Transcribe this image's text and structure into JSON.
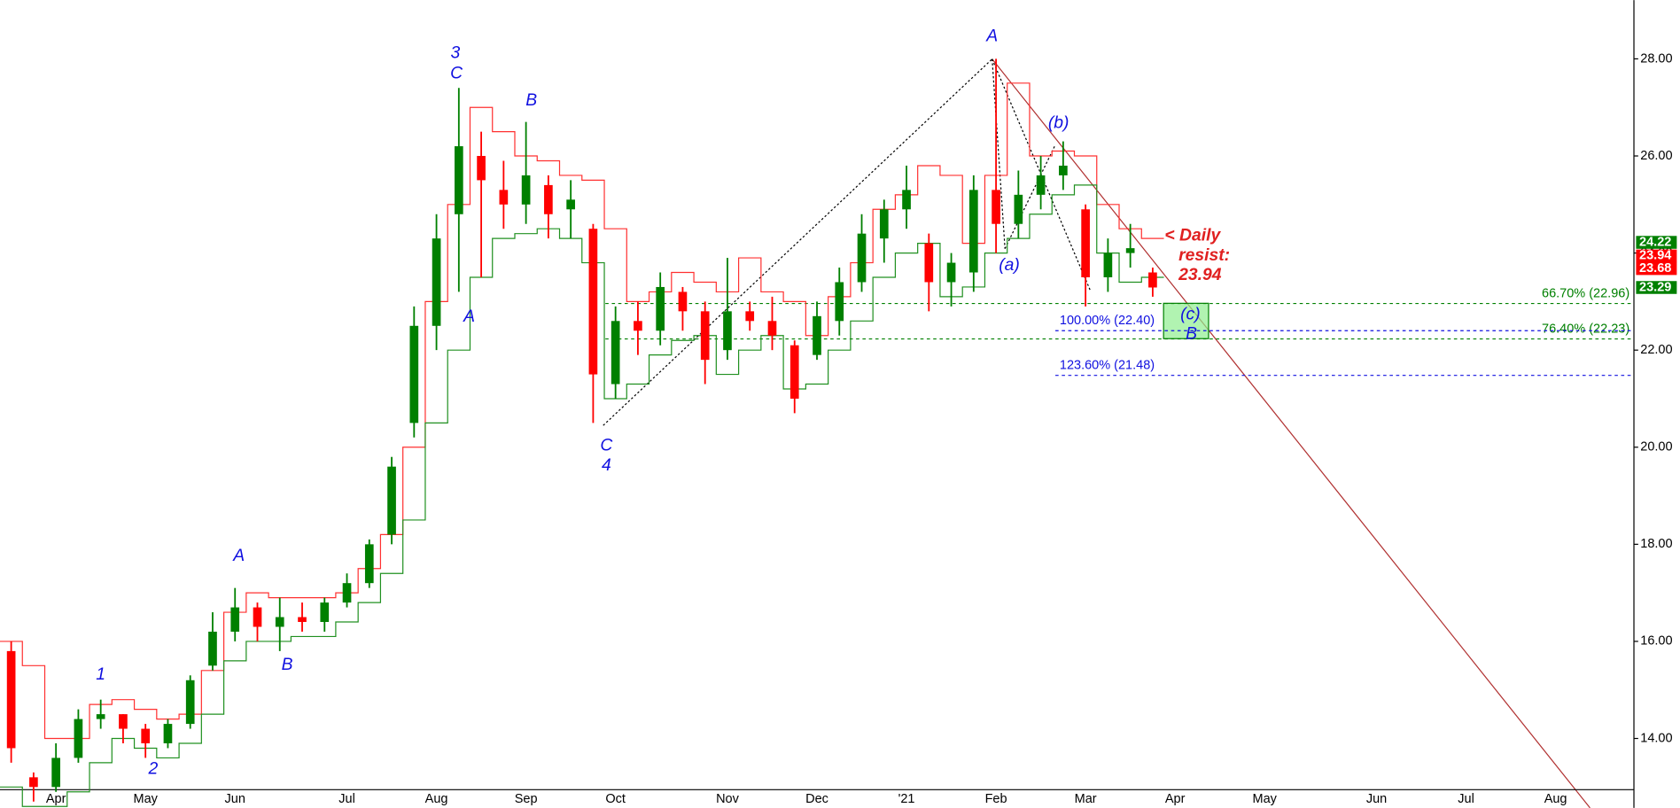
{
  "chart_data": {
    "type": "candlestick",
    "categories": [
      null,
      null,
      "Apr",
      null,
      null,
      null,
      "May",
      null,
      null,
      null,
      "Jun",
      null,
      null,
      null,
      null,
      "Jul",
      null,
      null,
      null,
      "Aug",
      null,
      null,
      null,
      "Sep",
      null,
      null,
      null,
      "Oct",
      null,
      null,
      null,
      null,
      "Nov",
      null,
      null,
      null,
      "Dec",
      null,
      null,
      null,
      "'21",
      null,
      null,
      null,
      "Feb",
      null,
      null,
      null,
      "Mar",
      null,
      null,
      null,
      "Apr",
      null,
      null,
      null,
      "May",
      null,
      null,
      null,
      null,
      "Jun",
      null,
      null,
      null,
      "Jul",
      null,
      null,
      null,
      "Aug",
      null,
      null,
      null
    ],
    "open": [
      15.8,
      13.2,
      13.0,
      13.6,
      14.4,
      14.5,
      14.2,
      13.9,
      14.3,
      15.5,
      16.2,
      16.7,
      16.3,
      16.5,
      16.4,
      16.8,
      17.2,
      18.2,
      20.5,
      22.5,
      24.8,
      26.0,
      25.3,
      25.0,
      25.4,
      24.9,
      24.5,
      21.3,
      22.6,
      22.4,
      23.2,
      22.8,
      22.0,
      22.8,
      22.6,
      22.1,
      21.9,
      22.6,
      23.4,
      24.3,
      24.9,
      24.2,
      23.4,
      23.6,
      25.3,
      24.6,
      25.2,
      25.6,
      24.9,
      23.5,
      24.0,
      23.6,
      null,
      null,
      null,
      null,
      null,
      null,
      null,
      null,
      null,
      null,
      null,
      null,
      null,
      null,
      null,
      null,
      null,
      null,
      null,
      null,
      null
    ],
    "high": [
      16.0,
      13.3,
      13.9,
      14.6,
      14.8,
      14.5,
      14.3,
      14.4,
      15.3,
      16.6,
      17.1,
      16.8,
      16.9,
      16.8,
      16.9,
      17.4,
      18.1,
      19.8,
      22.9,
      24.8,
      27.4,
      26.5,
      25.9,
      26.7,
      25.6,
      25.5,
      24.6,
      22.9,
      23.0,
      23.6,
      23.3,
      23.0,
      23.9,
      23.0,
      23.1,
      22.2,
      23.0,
      23.7,
      24.8,
      25.1,
      25.8,
      24.4,
      24.0,
      25.6,
      28.0,
      25.7,
      26.0,
      26.3,
      25.0,
      24.3,
      24.6,
      23.7,
      null,
      null,
      null,
      null,
      null,
      null,
      null,
      null,
      null,
      null,
      null,
      null,
      null,
      null,
      null,
      null,
      null,
      null,
      null,
      null,
      null
    ],
    "low": [
      13.5,
      12.7,
      12.9,
      13.5,
      14.2,
      13.9,
      13.6,
      13.8,
      14.2,
      15.4,
      16.0,
      16.0,
      15.8,
      16.2,
      16.2,
      16.7,
      17.1,
      18.0,
      20.2,
      22.0,
      23.2,
      23.5,
      24.5,
      24.6,
      24.3,
      24.3,
      20.5,
      21.0,
      21.9,
      22.1,
      22.4,
      21.3,
      21.8,
      22.4,
      22.0,
      20.7,
      21.8,
      22.3,
      23.2,
      23.8,
      24.5,
      22.8,
      22.9,
      23.2,
      24.0,
      24.3,
      24.9,
      25.3,
      22.9,
      23.2,
      23.7,
      23.1,
      null,
      null,
      null,
      null,
      null,
      null,
      null,
      null,
      null,
      null,
      null,
      null,
      null,
      null,
      null,
      null,
      null,
      null,
      null,
      null,
      null
    ],
    "close": [
      13.8,
      13.0,
      13.6,
      14.4,
      14.5,
      14.2,
      13.9,
      14.3,
      15.2,
      16.2,
      16.7,
      16.3,
      16.5,
      16.4,
      16.8,
      17.2,
      18.0,
      19.6,
      22.5,
      24.3,
      26.2,
      25.5,
      25.0,
      25.6,
      24.8,
      25.1,
      21.5,
      22.6,
      22.4,
      23.3,
      22.8,
      21.8,
      22.8,
      22.6,
      22.3,
      21.0,
      22.7,
      23.4,
      24.4,
      24.9,
      25.3,
      23.4,
      23.8,
      25.3,
      24.6,
      25.2,
      25.6,
      25.8,
      23.5,
      24.0,
      24.1,
      23.29,
      null,
      null,
      null,
      null,
      null,
      null,
      null,
      null,
      null,
      null,
      null,
      null,
      null,
      null,
      null,
      null,
      null,
      null,
      null,
      null,
      null
    ],
    "up_color": "#008000",
    "down_color": "#ff0000",
    "bands": [
      {
        "color": "#ff3030",
        "values": [
          16.0,
          15.5,
          14.0,
          14.0,
          14.7,
          14.8,
          14.6,
          14.4,
          14.5,
          15.4,
          16.6,
          17.0,
          16.9,
          16.9,
          16.9,
          17.0,
          17.5,
          18.2,
          20.0,
          23.0,
          25.0,
          27.0,
          26.5,
          26.0,
          25.9,
          25.6,
          25.5,
          24.5,
          23.0,
          23.2,
          23.6,
          23.4,
          23.2,
          23.9,
          23.2,
          23.0,
          22.3,
          23.1,
          23.8,
          24.9,
          25.2,
          25.8,
          25.6,
          24.2,
          25.6,
          27.5,
          26.0,
          26.1,
          26.0,
          25.0,
          24.5,
          24.3,
          null,
          null,
          null,
          null,
          null,
          null,
          null,
          null,
          null,
          null,
          null,
          null,
          null,
          null,
          null,
          null,
          null,
          null,
          null,
          null,
          null
        ]
      },
      {
        "color": "#209020",
        "values": [
          13.0,
          12.6,
          12.6,
          12.9,
          13.5,
          14.0,
          13.8,
          13.6,
          13.9,
          14.5,
          15.6,
          16.0,
          16.0,
          16.1,
          16.1,
          16.4,
          16.8,
          17.4,
          18.5,
          20.5,
          22.0,
          23.5,
          24.3,
          24.4,
          24.5,
          24.3,
          23.8,
          21.0,
          21.3,
          21.9,
          22.2,
          22.3,
          21.5,
          22.0,
          22.3,
          21.2,
          21.3,
          22.0,
          22.6,
          23.5,
          24.0,
          24.2,
          23.1,
          23.3,
          24.0,
          24.3,
          24.8,
          25.2,
          25.4,
          24.0,
          23.4,
          23.5,
          null,
          null,
          null,
          null,
          null,
          null,
          null,
          null,
          null,
          null,
          null,
          null,
          null,
          null,
          null,
          null,
          null,
          null,
          null,
          null,
          null
        ]
      }
    ],
    "ylim": [
      12.57,
      29.21
    ],
    "yticks": [
      {
        "value": 14,
        "label": "14.00"
      },
      {
        "value": 16,
        "label": "16.00"
      },
      {
        "value": 18,
        "label": "18.00"
      },
      {
        "value": 20,
        "label": "20.00"
      },
      {
        "value": 22,
        "label": "22.00"
      },
      {
        "value": 24,
        "label": "24.00"
      },
      {
        "value": 26,
        "label": "26.00"
      },
      {
        "value": 28,
        "label": "28.00"
      }
    ],
    "fib_levels": [
      {
        "label": "66.70% (22.96)",
        "value": 22.96,
        "color": "#008000"
      },
      {
        "label": "76.40% (22.23)",
        "value": 22.23,
        "color": "#008000"
      },
      {
        "label": "100.00% (22.40)",
        "value": 22.4,
        "color": "#1010e0"
      },
      {
        "label": "123.60% (21.48)",
        "value": 21.48,
        "color": "#1010e0"
      }
    ],
    "price_tags": [
      {
        "value": 24.22,
        "color": "#008000"
      },
      {
        "value": 23.94,
        "color": "#ff0000"
      },
      {
        "value": 23.68,
        "color": "#ff0000"
      },
      {
        "value": 23.29,
        "color": "#008000"
      }
    ],
    "wave_labels": [
      "1",
      "2",
      "A",
      "B",
      "3",
      "C",
      "A",
      "B",
      "C",
      "4",
      "A",
      "(a)",
      "(b)",
      "(c)",
      "B"
    ],
    "annotation": [
      "<  Daily",
      "resist:",
      "23.94"
    ]
  }
}
